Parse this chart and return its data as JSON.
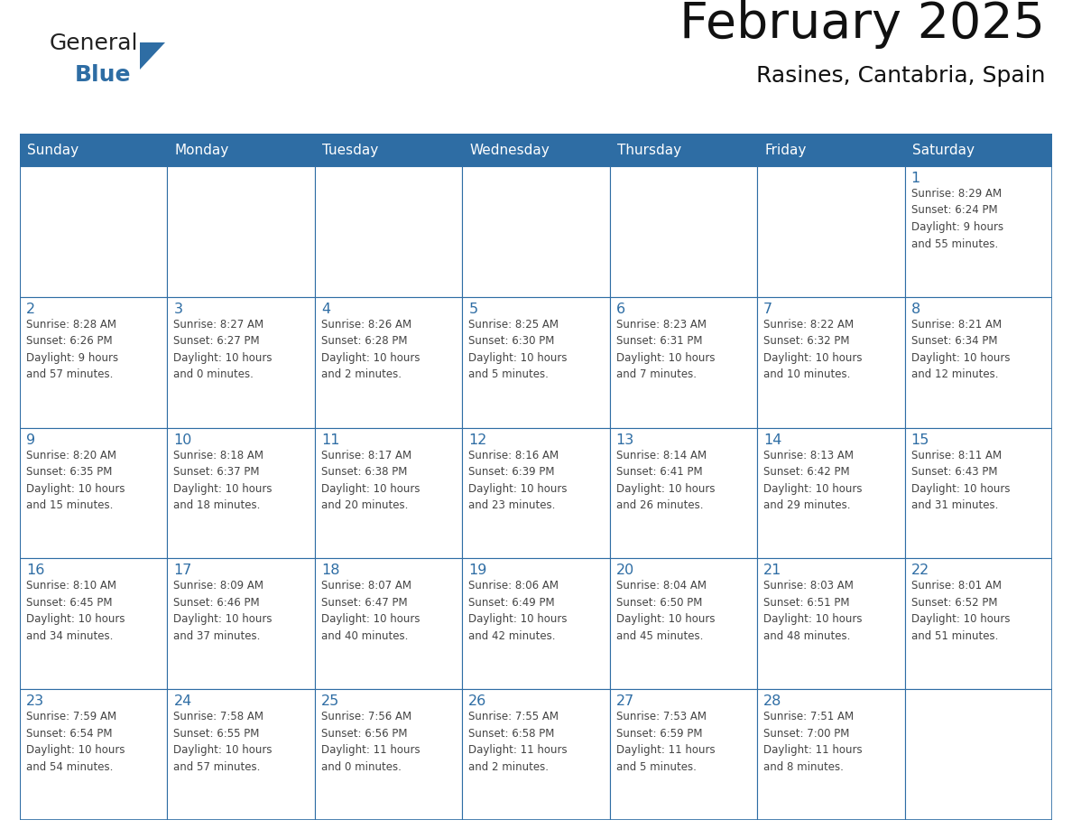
{
  "title": "February 2025",
  "subtitle": "Rasines, Cantabria, Spain",
  "header_bg": "#2E6DA4",
  "header_text_color": "#FFFFFF",
  "cell_bg": "#FFFFFF",
  "border_color": "#2E6DA4",
  "text_color": "#444444",
  "day_number_color": "#2E6DA4",
  "days_of_week": [
    "Sunday",
    "Monday",
    "Tuesday",
    "Wednesday",
    "Thursday",
    "Friday",
    "Saturday"
  ],
  "calendar_data": [
    [
      {
        "day": "",
        "info": ""
      },
      {
        "day": "",
        "info": ""
      },
      {
        "day": "",
        "info": ""
      },
      {
        "day": "",
        "info": ""
      },
      {
        "day": "",
        "info": ""
      },
      {
        "day": "",
        "info": ""
      },
      {
        "day": "1",
        "info": "Sunrise: 8:29 AM\nSunset: 6:24 PM\nDaylight: 9 hours\nand 55 minutes."
      }
    ],
    [
      {
        "day": "2",
        "info": "Sunrise: 8:28 AM\nSunset: 6:26 PM\nDaylight: 9 hours\nand 57 minutes."
      },
      {
        "day": "3",
        "info": "Sunrise: 8:27 AM\nSunset: 6:27 PM\nDaylight: 10 hours\nand 0 minutes."
      },
      {
        "day": "4",
        "info": "Sunrise: 8:26 AM\nSunset: 6:28 PM\nDaylight: 10 hours\nand 2 minutes."
      },
      {
        "day": "5",
        "info": "Sunrise: 8:25 AM\nSunset: 6:30 PM\nDaylight: 10 hours\nand 5 minutes."
      },
      {
        "day": "6",
        "info": "Sunrise: 8:23 AM\nSunset: 6:31 PM\nDaylight: 10 hours\nand 7 minutes."
      },
      {
        "day": "7",
        "info": "Sunrise: 8:22 AM\nSunset: 6:32 PM\nDaylight: 10 hours\nand 10 minutes."
      },
      {
        "day": "8",
        "info": "Sunrise: 8:21 AM\nSunset: 6:34 PM\nDaylight: 10 hours\nand 12 minutes."
      }
    ],
    [
      {
        "day": "9",
        "info": "Sunrise: 8:20 AM\nSunset: 6:35 PM\nDaylight: 10 hours\nand 15 minutes."
      },
      {
        "day": "10",
        "info": "Sunrise: 8:18 AM\nSunset: 6:37 PM\nDaylight: 10 hours\nand 18 minutes."
      },
      {
        "day": "11",
        "info": "Sunrise: 8:17 AM\nSunset: 6:38 PM\nDaylight: 10 hours\nand 20 minutes."
      },
      {
        "day": "12",
        "info": "Sunrise: 8:16 AM\nSunset: 6:39 PM\nDaylight: 10 hours\nand 23 minutes."
      },
      {
        "day": "13",
        "info": "Sunrise: 8:14 AM\nSunset: 6:41 PM\nDaylight: 10 hours\nand 26 minutes."
      },
      {
        "day": "14",
        "info": "Sunrise: 8:13 AM\nSunset: 6:42 PM\nDaylight: 10 hours\nand 29 minutes."
      },
      {
        "day": "15",
        "info": "Sunrise: 8:11 AM\nSunset: 6:43 PM\nDaylight: 10 hours\nand 31 minutes."
      }
    ],
    [
      {
        "day": "16",
        "info": "Sunrise: 8:10 AM\nSunset: 6:45 PM\nDaylight: 10 hours\nand 34 minutes."
      },
      {
        "day": "17",
        "info": "Sunrise: 8:09 AM\nSunset: 6:46 PM\nDaylight: 10 hours\nand 37 minutes."
      },
      {
        "day": "18",
        "info": "Sunrise: 8:07 AM\nSunset: 6:47 PM\nDaylight: 10 hours\nand 40 minutes."
      },
      {
        "day": "19",
        "info": "Sunrise: 8:06 AM\nSunset: 6:49 PM\nDaylight: 10 hours\nand 42 minutes."
      },
      {
        "day": "20",
        "info": "Sunrise: 8:04 AM\nSunset: 6:50 PM\nDaylight: 10 hours\nand 45 minutes."
      },
      {
        "day": "21",
        "info": "Sunrise: 8:03 AM\nSunset: 6:51 PM\nDaylight: 10 hours\nand 48 minutes."
      },
      {
        "day": "22",
        "info": "Sunrise: 8:01 AM\nSunset: 6:52 PM\nDaylight: 10 hours\nand 51 minutes."
      }
    ],
    [
      {
        "day": "23",
        "info": "Sunrise: 7:59 AM\nSunset: 6:54 PM\nDaylight: 10 hours\nand 54 minutes."
      },
      {
        "day": "24",
        "info": "Sunrise: 7:58 AM\nSunset: 6:55 PM\nDaylight: 10 hours\nand 57 minutes."
      },
      {
        "day": "25",
        "info": "Sunrise: 7:56 AM\nSunset: 6:56 PM\nDaylight: 11 hours\nand 0 minutes."
      },
      {
        "day": "26",
        "info": "Sunrise: 7:55 AM\nSunset: 6:58 PM\nDaylight: 11 hours\nand 2 minutes."
      },
      {
        "day": "27",
        "info": "Sunrise: 7:53 AM\nSunset: 6:59 PM\nDaylight: 11 hours\nand 5 minutes."
      },
      {
        "day": "28",
        "info": "Sunrise: 7:51 AM\nSunset: 7:00 PM\nDaylight: 11 hours\nand 8 minutes."
      },
      {
        "day": "",
        "info": ""
      }
    ]
  ],
  "logo_color_general": "#222222",
  "logo_color_blue": "#2E6DA4",
  "logo_triangle_color": "#2E6DA4",
  "fig_width": 11.88,
  "fig_height": 9.18,
  "fig_dpi": 100
}
